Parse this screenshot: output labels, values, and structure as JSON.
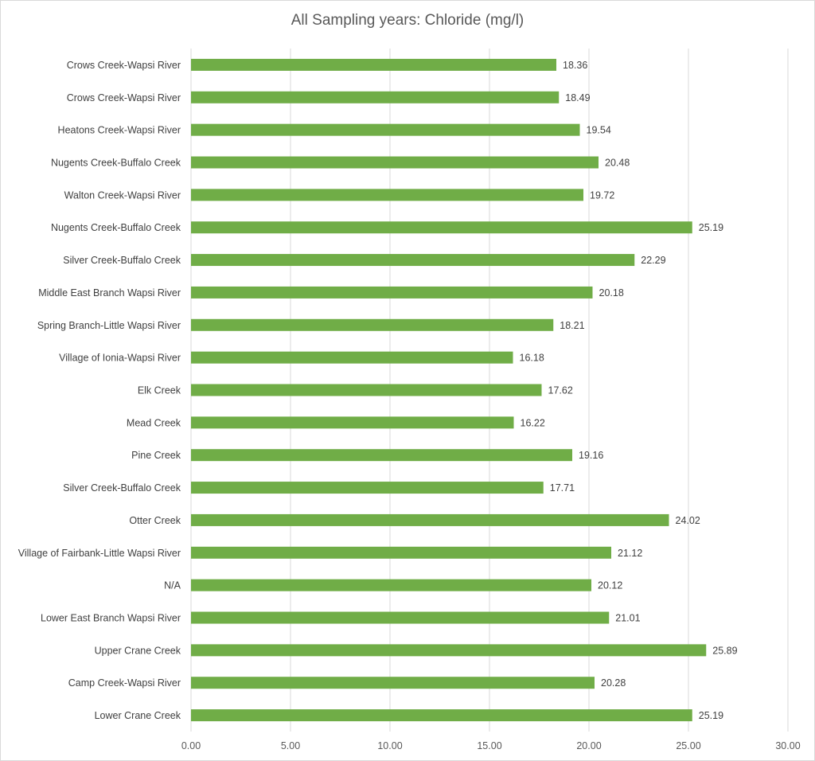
{
  "chart_data": {
    "type": "bar",
    "orientation": "horizontal",
    "title": "All Sampling years: Chloride (mg/l)",
    "xlabel": "",
    "ylabel": "",
    "xlim": [
      0,
      30
    ],
    "x_ticks": [
      "0.00",
      "5.00",
      "10.00",
      "15.00",
      "20.00",
      "25.00",
      "30.00"
    ],
    "grid": "vertical major gridlines",
    "legend": "none",
    "bar_color": "#70ad47",
    "categories": [
      "Crows Creek-Wapsi River",
      "Crows Creek-Wapsi River",
      "Heatons Creek-Wapsi River",
      "Nugents Creek-Buffalo Creek",
      "Walton Creek-Wapsi River",
      "Nugents Creek-Buffalo Creek",
      "Silver Creek-Buffalo Creek",
      "Middle East Branch Wapsi River",
      "Spring Branch-Little Wapsi River",
      "Village of Ionia-Wapsi River",
      "Elk Creek",
      "Mead Creek",
      "Pine Creek",
      "Silver Creek-Buffalo Creek",
      "Otter Creek",
      "Village of Fairbank-Little Wapsi River",
      "N/A",
      "Lower East Branch Wapsi River",
      "Upper Crane Creek",
      "Camp Creek-Wapsi River",
      "Lower Crane Creek"
    ],
    "values": [
      18.36,
      18.49,
      19.54,
      20.48,
      19.72,
      25.19,
      22.29,
      20.18,
      18.21,
      16.18,
      17.62,
      16.22,
      19.16,
      17.71,
      24.02,
      21.12,
      20.12,
      21.01,
      25.89,
      20.28,
      25.19
    ],
    "value_labels": [
      "18.36",
      "18.49",
      "19.54",
      "20.48",
      "19.72",
      "25.19",
      "22.29",
      "20.18",
      "18.21",
      "16.18",
      "17.62",
      "16.22",
      "19.16",
      "17.71",
      "24.02",
      "21.12",
      "20.12",
      "21.01",
      "25.89",
      "20.28",
      "25.19"
    ]
  }
}
